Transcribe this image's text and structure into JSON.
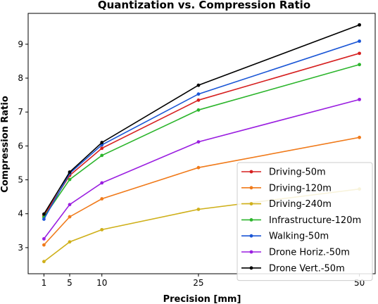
{
  "chart_data": {
    "type": "line",
    "title": "Quantization vs. Compression Ratio",
    "xlabel": "Precision [mm]",
    "ylabel": "Compression Ratio",
    "x": [
      1,
      5,
      10,
      25,
      50
    ],
    "xticks": [
      1,
      5,
      10,
      25,
      50
    ],
    "yticks": [
      3,
      4,
      5,
      6,
      7,
      8,
      9
    ],
    "xlim": [
      -1.45,
      52.45
    ],
    "ylim": [
      2.23,
      9.91
    ],
    "grid": false,
    "legend_position": "lower-right",
    "series": [
      {
        "name": "Driving-50m",
        "color": "#d62020",
        "values": [
          3.94,
          5.13,
          5.93,
          7.35,
          8.73
        ]
      },
      {
        "name": "Driving-120m",
        "color": "#f07a1a",
        "values": [
          3.08,
          3.91,
          4.44,
          5.36,
          6.25
        ]
      },
      {
        "name": "Driving-240m",
        "color": "#cfb01a",
        "values": [
          2.59,
          3.17,
          3.53,
          4.13,
          4.73
        ]
      },
      {
        "name": "Infrastructure-120m",
        "color": "#2cb52c",
        "values": [
          3.9,
          5.01,
          5.72,
          7.06,
          8.4
        ]
      },
      {
        "name": "Walking-50m",
        "color": "#1a56d6",
        "values": [
          3.84,
          5.19,
          6.03,
          7.53,
          9.09
        ]
      },
      {
        "name": "Drone Horiz.-50m",
        "color": "#9a1ee0",
        "values": [
          3.26,
          4.27,
          4.91,
          6.12,
          7.37
        ]
      },
      {
        "name": "Drone Vert.-50m",
        "color": "#000000",
        "values": [
          3.99,
          5.23,
          6.1,
          7.79,
          9.57
        ]
      }
    ]
  }
}
